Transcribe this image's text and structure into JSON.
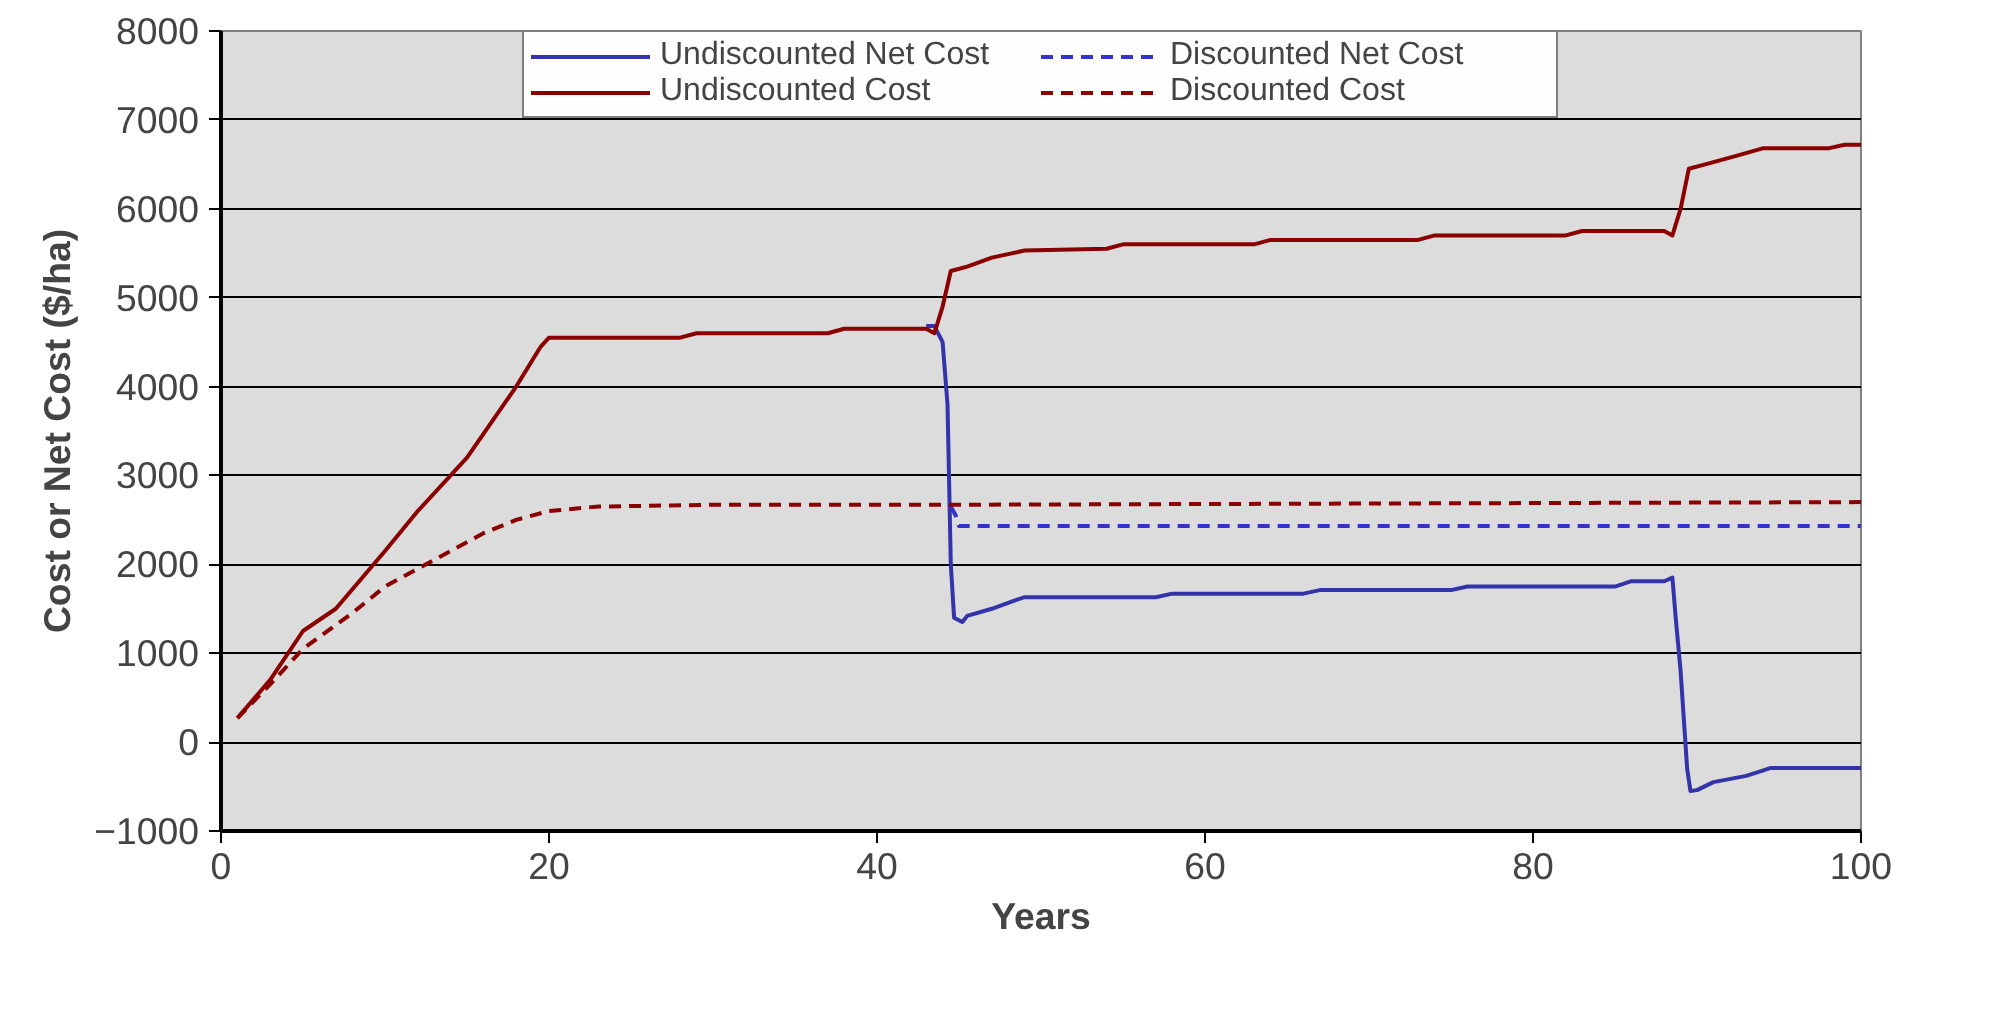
{
  "chart_data": {
    "type": "line",
    "xlabel": "Years",
    "ylabel": "Cost or Net Cost ($/ha)",
    "xlim": [
      0,
      100
    ],
    "xticks": [
      0,
      20,
      40,
      60,
      80,
      100
    ],
    "ylim": [
      -1000,
      8000
    ],
    "yticks": [
      -1000,
      0,
      1000,
      2000,
      3000,
      4000,
      5000,
      6000,
      7000,
      8000
    ],
    "grid": "y",
    "legend": "top",
    "series": [
      {
        "name": "Undiscounted Net Cost",
        "color": "#3333aa",
        "line_style": "solid",
        "x": [
          43,
          43.5,
          44,
          44.3,
          44.5,
          44.7,
          45.2,
          45.5,
          47,
          48.5,
          49,
          57,
          58,
          66,
          67,
          75,
          76,
          85,
          86,
          88,
          88.5,
          88.7,
          89,
          89.4,
          89.6,
          90,
          91,
          93,
          94,
          94.5,
          100
        ],
        "values": [
          4680,
          4680,
          4500,
          3800,
          2000,
          1400,
          1350,
          1420,
          1500,
          1600,
          1630,
          1630,
          1670,
          1670,
          1710,
          1710,
          1750,
          1750,
          1810,
          1810,
          1850,
          1400,
          800,
          -300,
          -550,
          -540,
          -450,
          -380,
          -320,
          -290,
          -290
        ]
      },
      {
        "name": "Discounted Net Cost",
        "color": "#3333cc",
        "line_style": "dashed",
        "x": [
          44.5,
          44.8,
          45,
          100
        ],
        "values": [
          2650,
          2550,
          2430,
          2430
        ]
      },
      {
        "name": "Undiscounted Cost",
        "color": "#8b0000",
        "line_style": "solid",
        "x": [
          1,
          3,
          5,
          7,
          10,
          12,
          15,
          18,
          19.5,
          20,
          28,
          29,
          37,
          38,
          43,
          43.5,
          44,
          44.5,
          45.5,
          47,
          49,
          54,
          55,
          63,
          64,
          73,
          74,
          82,
          83,
          88,
          88.5,
          89,
          89.5,
          90.5,
          92.5,
          94,
          98,
          99,
          100
        ],
        "values": [
          270,
          700,
          1250,
          1500,
          2150,
          2600,
          3200,
          4000,
          4450,
          4550,
          4550,
          4600,
          4600,
          4650,
          4650,
          4600,
          4900,
          5300,
          5350,
          5450,
          5530,
          5550,
          5600,
          5600,
          5650,
          5650,
          5700,
          5700,
          5750,
          5750,
          5700,
          6000,
          6450,
          6500,
          6600,
          6680,
          6680,
          6720,
          6720
        ]
      },
      {
        "name": "Discounted Cost",
        "color": "#8b0000",
        "line_style": "dashed",
        "x": [
          1,
          3,
          5,
          8,
          10,
          13,
          16,
          18,
          20,
          23,
          30,
          44,
          100
        ],
        "values": [
          270,
          650,
          1050,
          1450,
          1750,
          2050,
          2350,
          2500,
          2600,
          2650,
          2670,
          2670,
          2700
        ]
      }
    ]
  }
}
